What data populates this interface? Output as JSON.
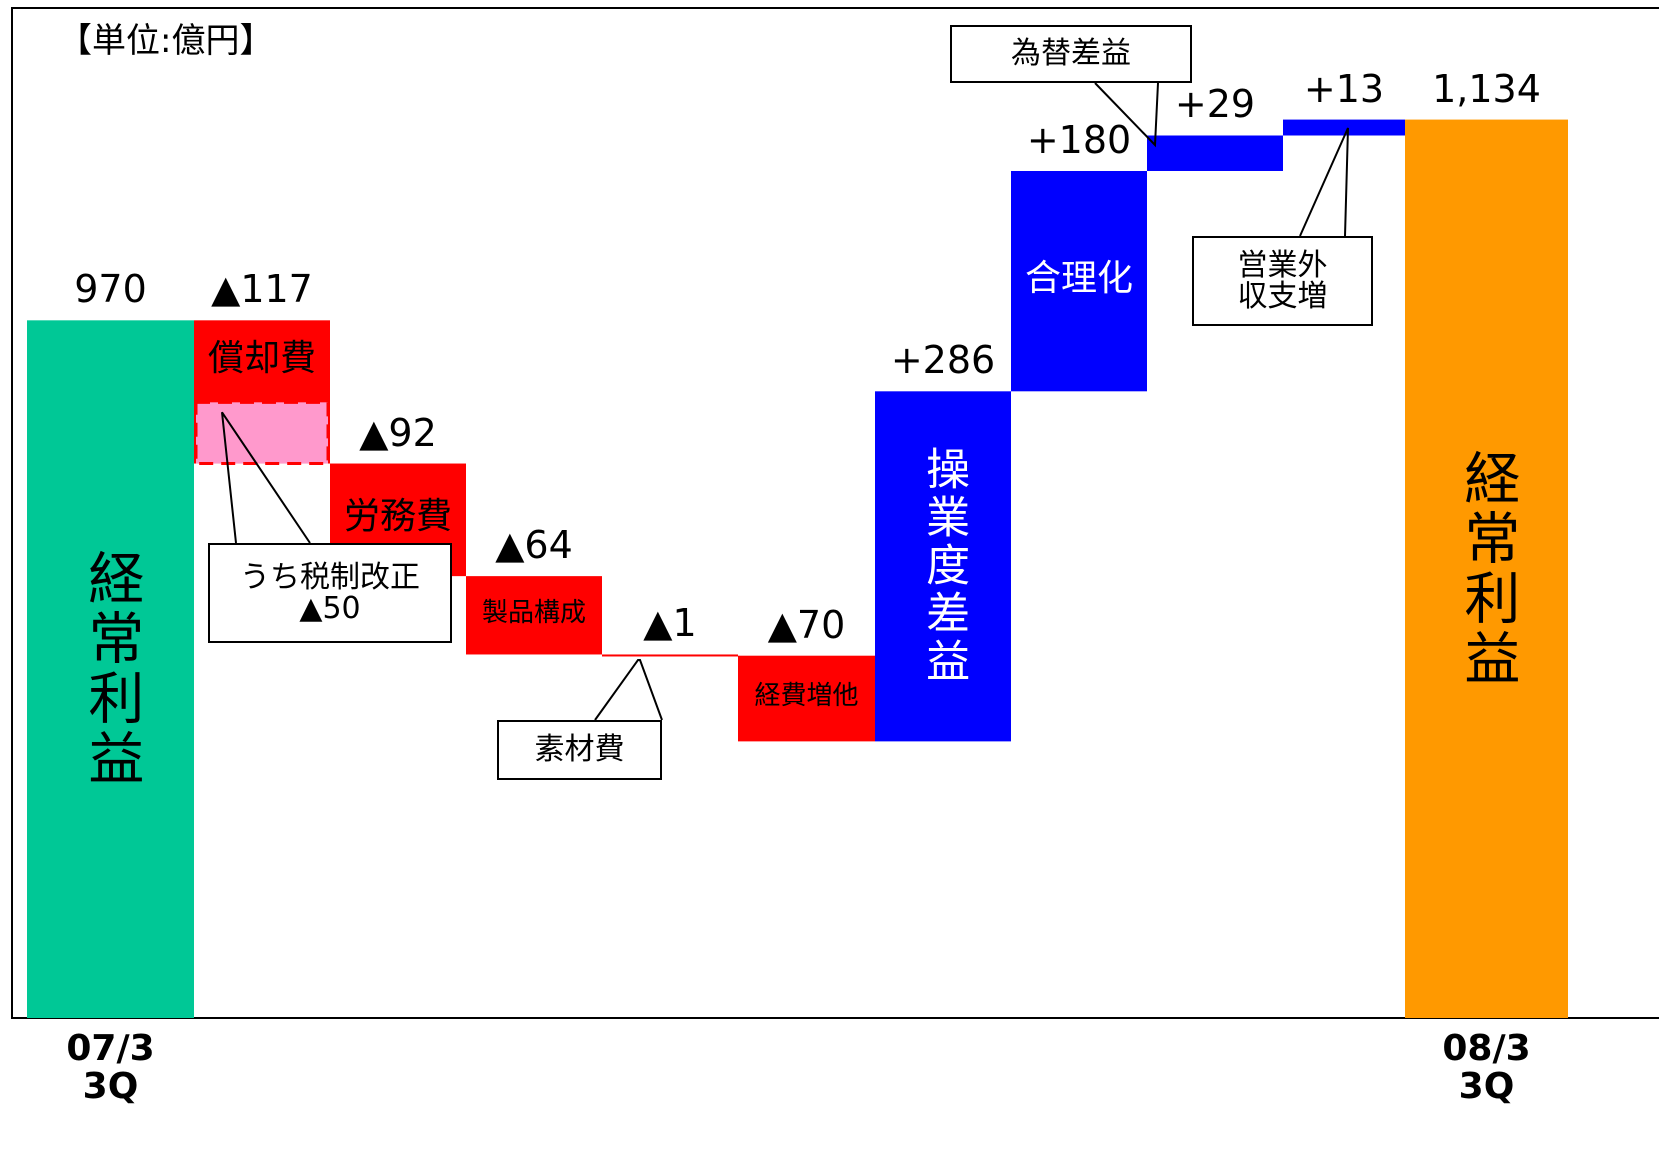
{
  "chart_data": {
    "type": "waterfall",
    "title": "【単位:億円】",
    "categories": [
      "経常利益",
      "償却費",
      "労務費",
      "製品構成",
      "素材費",
      "経費増他",
      "操業度差益",
      "合理化",
      "為替差益",
      "営業外\n収支増",
      "経常利益"
    ],
    "values": [
      970,
      -117,
      -92,
      -64,
      -1,
      -70,
      286,
      180,
      29,
      13,
      1134
    ],
    "value_labels": [
      "970",
      "▲117",
      "▲92",
      "▲64",
      "▲1",
      "▲70",
      "+286",
      "+180",
      "+29",
      "+13",
      "1,134"
    ],
    "x_labels": [
      "07/3\n3Q",
      null,
      null,
      null,
      null,
      null,
      null,
      null,
      null,
      null,
      "08/3\n3Q"
    ],
    "annotation": {
      "text": "うち税制改正",
      "value": -50,
      "value_label": "▲50",
      "color": "#ff99cc"
    },
    "start_color": "#00c896",
    "end_color": "#ff9900",
    "decrease_color": "#ff0000",
    "increase_color": "#0000ff",
    "ylim": [
      400,
      1150
    ]
  }
}
